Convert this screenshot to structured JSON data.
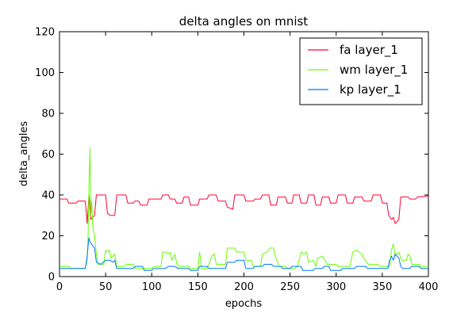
{
  "chart_data": {
    "type": "line",
    "title": "delta angles on mnist",
    "xlabel": "epochs",
    "ylabel": "delta_angles",
    "xlim": [
      0,
      400
    ],
    "ylim": [
      0,
      120
    ],
    "xticks": [
      0,
      50,
      100,
      150,
      200,
      250,
      300,
      350,
      400
    ],
    "yticks": [
      0,
      20,
      40,
      60,
      80,
      100,
      120
    ],
    "grid": false,
    "legend_position": "top-right",
    "series": [
      {
        "name": "fa layer_1",
        "color": "#ff0033",
        "points": [
          [
            0,
            38
          ],
          [
            8,
            38
          ],
          [
            10,
            36
          ],
          [
            18,
            36
          ],
          [
            20,
            37
          ],
          [
            28,
            37
          ],
          [
            30,
            26
          ],
          [
            32,
            40
          ],
          [
            34,
            28
          ],
          [
            36,
            29
          ],
          [
            38,
            30
          ],
          [
            40,
            40
          ],
          [
            50,
            40
          ],
          [
            52,
            31
          ],
          [
            55,
            30
          ],
          [
            60,
            30
          ],
          [
            62,
            40
          ],
          [
            72,
            40
          ],
          [
            74,
            36
          ],
          [
            80,
            36
          ],
          [
            82,
            37
          ],
          [
            86,
            37
          ],
          [
            88,
            35
          ],
          [
            95,
            35
          ],
          [
            97,
            38
          ],
          [
            110,
            38
          ],
          [
            112,
            40
          ],
          [
            118,
            40
          ],
          [
            120,
            38
          ],
          [
            125,
            38
          ],
          [
            127,
            36
          ],
          [
            133,
            36
          ],
          [
            135,
            39
          ],
          [
            140,
            39
          ],
          [
            142,
            35
          ],
          [
            150,
            35
          ],
          [
            152,
            38
          ],
          [
            160,
            38
          ],
          [
            162,
            40
          ],
          [
            170,
            40
          ],
          [
            172,
            37
          ],
          [
            180,
            37
          ],
          [
            182,
            34
          ],
          [
            188,
            33
          ],
          [
            190,
            40
          ],
          [
            200,
            40
          ],
          [
            202,
            37
          ],
          [
            210,
            37
          ],
          [
            212,
            38
          ],
          [
            218,
            38
          ],
          [
            220,
            40
          ],
          [
            227,
            40
          ],
          [
            229,
            35
          ],
          [
            235,
            35
          ],
          [
            237,
            39
          ],
          [
            245,
            39
          ],
          [
            247,
            36
          ],
          [
            252,
            36
          ],
          [
            254,
            40
          ],
          [
            260,
            40
          ],
          [
            262,
            36
          ],
          [
            268,
            36
          ],
          [
            270,
            40
          ],
          [
            276,
            40
          ],
          [
            278,
            35
          ],
          [
            283,
            35
          ],
          [
            285,
            39
          ],
          [
            292,
            39
          ],
          [
            294,
            36
          ],
          [
            300,
            36
          ],
          [
            302,
            40
          ],
          [
            310,
            40
          ],
          [
            312,
            36
          ],
          [
            318,
            36
          ],
          [
            320,
            39
          ],
          [
            328,
            39
          ],
          [
            330,
            37
          ],
          [
            338,
            37
          ],
          [
            340,
            40
          ],
          [
            348,
            40
          ],
          [
            350,
            36
          ],
          [
            355,
            36
          ],
          [
            357,
            30
          ],
          [
            360,
            28
          ],
          [
            362,
            29
          ],
          [
            364,
            26
          ],
          [
            366,
            27
          ],
          [
            368,
            28
          ],
          [
            370,
            39
          ],
          [
            378,
            39
          ],
          [
            380,
            38
          ],
          [
            386,
            38
          ],
          [
            388,
            39
          ],
          [
            400,
            39.5
          ]
        ]
      },
      {
        "name": "wm layer_1",
        "color": "#66ff00",
        "points": [
          [
            0,
            5
          ],
          [
            10,
            5
          ],
          [
            12,
            4
          ],
          [
            28,
            4
          ],
          [
            30,
            8
          ],
          [
            31,
            20
          ],
          [
            32,
            45
          ],
          [
            33,
            63
          ],
          [
            34,
            30
          ],
          [
            35,
            37
          ],
          [
            36,
            25
          ],
          [
            38,
            20
          ],
          [
            40,
            11
          ],
          [
            42,
            6
          ],
          [
            48,
            6
          ],
          [
            50,
            13
          ],
          [
            52,
            12
          ],
          [
            54,
            13
          ],
          [
            56,
            9
          ],
          [
            58,
            10
          ],
          [
            60,
            11
          ],
          [
            62,
            5
          ],
          [
            70,
            5
          ],
          [
            72,
            6
          ],
          [
            80,
            6
          ],
          [
            82,
            4
          ],
          [
            100,
            4
          ],
          [
            102,
            5
          ],
          [
            110,
            5
          ],
          [
            112,
            12
          ],
          [
            115,
            12
          ],
          [
            118,
            11
          ],
          [
            120,
            12
          ],
          [
            122,
            8
          ],
          [
            125,
            11
          ],
          [
            128,
            5
          ],
          [
            140,
            5
          ],
          [
            142,
            4
          ],
          [
            150,
            4
          ],
          [
            152,
            12
          ],
          [
            154,
            4
          ],
          [
            160,
            4
          ],
          [
            162,
            6
          ],
          [
            165,
            10
          ],
          [
            168,
            11
          ],
          [
            170,
            6
          ],
          [
            180,
            6
          ],
          [
            182,
            14
          ],
          [
            190,
            14
          ],
          [
            192,
            12
          ],
          [
            200,
            12
          ],
          [
            202,
            8
          ],
          [
            208,
            8
          ],
          [
            210,
            5
          ],
          [
            218,
            5
          ],
          [
            220,
            11
          ],
          [
            225,
            12
          ],
          [
            228,
            14
          ],
          [
            232,
            14
          ],
          [
            234,
            10
          ],
          [
            238,
            5
          ],
          [
            245,
            5
          ],
          [
            248,
            4
          ],
          [
            255,
            4
          ],
          [
            258,
            5
          ],
          [
            262,
            12
          ],
          [
            265,
            11
          ],
          [
            268,
            12
          ],
          [
            270,
            7
          ],
          [
            275,
            8
          ],
          [
            278,
            5
          ],
          [
            280,
            9
          ],
          [
            285,
            10
          ],
          [
            288,
            8
          ],
          [
            290,
            6
          ],
          [
            300,
            6
          ],
          [
            302,
            5
          ],
          [
            315,
            5
          ],
          [
            318,
            12
          ],
          [
            322,
            13
          ],
          [
            325,
            12
          ],
          [
            328,
            11
          ],
          [
            330,
            9
          ],
          [
            335,
            6
          ],
          [
            345,
            6
          ],
          [
            348,
            5
          ],
          [
            358,
            5
          ],
          [
            360,
            13
          ],
          [
            362,
            16
          ],
          [
            364,
            10
          ],
          [
            366,
            11
          ],
          [
            368,
            12
          ],
          [
            370,
            9
          ],
          [
            372,
            8
          ],
          [
            376,
            8
          ],
          [
            378,
            11
          ],
          [
            380,
            10
          ],
          [
            382,
            6
          ],
          [
            390,
            6
          ],
          [
            392,
            5
          ],
          [
            400,
            5
          ]
        ]
      },
      {
        "name": "kp layer_1",
        "color": "#0077ff",
        "points": [
          [
            0,
            4
          ],
          [
            28,
            4
          ],
          [
            30,
            10
          ],
          [
            31,
            15
          ],
          [
            32,
            19
          ],
          [
            33,
            17
          ],
          [
            35,
            16
          ],
          [
            36,
            15
          ],
          [
            38,
            14
          ],
          [
            40,
            7
          ],
          [
            45,
            6
          ],
          [
            50,
            8
          ],
          [
            55,
            8
          ],
          [
            58,
            7
          ],
          [
            60,
            8
          ],
          [
            62,
            4
          ],
          [
            80,
            4
          ],
          [
            82,
            5
          ],
          [
            90,
            5
          ],
          [
            92,
            3
          ],
          [
            100,
            3
          ],
          [
            102,
            4
          ],
          [
            115,
            4
          ],
          [
            118,
            5
          ],
          [
            125,
            5
          ],
          [
            128,
            4
          ],
          [
            140,
            4
          ],
          [
            142,
            3
          ],
          [
            150,
            3
          ],
          [
            152,
            5
          ],
          [
            160,
            5
          ],
          [
            162,
            4
          ],
          [
            180,
            4
          ],
          [
            182,
            7
          ],
          [
            190,
            7
          ],
          [
            192,
            8
          ],
          [
            200,
            8
          ],
          [
            202,
            4
          ],
          [
            210,
            4
          ],
          [
            212,
            5
          ],
          [
            220,
            5
          ],
          [
            222,
            6
          ],
          [
            230,
            6
          ],
          [
            232,
            5
          ],
          [
            240,
            5
          ],
          [
            242,
            4
          ],
          [
            250,
            4
          ],
          [
            252,
            5
          ],
          [
            262,
            5
          ],
          [
            264,
            3
          ],
          [
            275,
            3
          ],
          [
            277,
            4
          ],
          [
            285,
            4
          ],
          [
            287,
            5
          ],
          [
            292,
            5
          ],
          [
            294,
            3
          ],
          [
            305,
            3
          ],
          [
            307,
            4
          ],
          [
            320,
            4
          ],
          [
            322,
            5
          ],
          [
            332,
            5
          ],
          [
            334,
            4
          ],
          [
            356,
            4
          ],
          [
            358,
            8
          ],
          [
            360,
            10
          ],
          [
            362,
            8
          ],
          [
            364,
            11
          ],
          [
            366,
            10
          ],
          [
            368,
            9
          ],
          [
            370,
            5
          ],
          [
            372,
            4
          ],
          [
            380,
            4
          ],
          [
            382,
            5
          ],
          [
            390,
            5
          ],
          [
            392,
            4
          ],
          [
            400,
            4
          ]
        ]
      }
    ]
  }
}
